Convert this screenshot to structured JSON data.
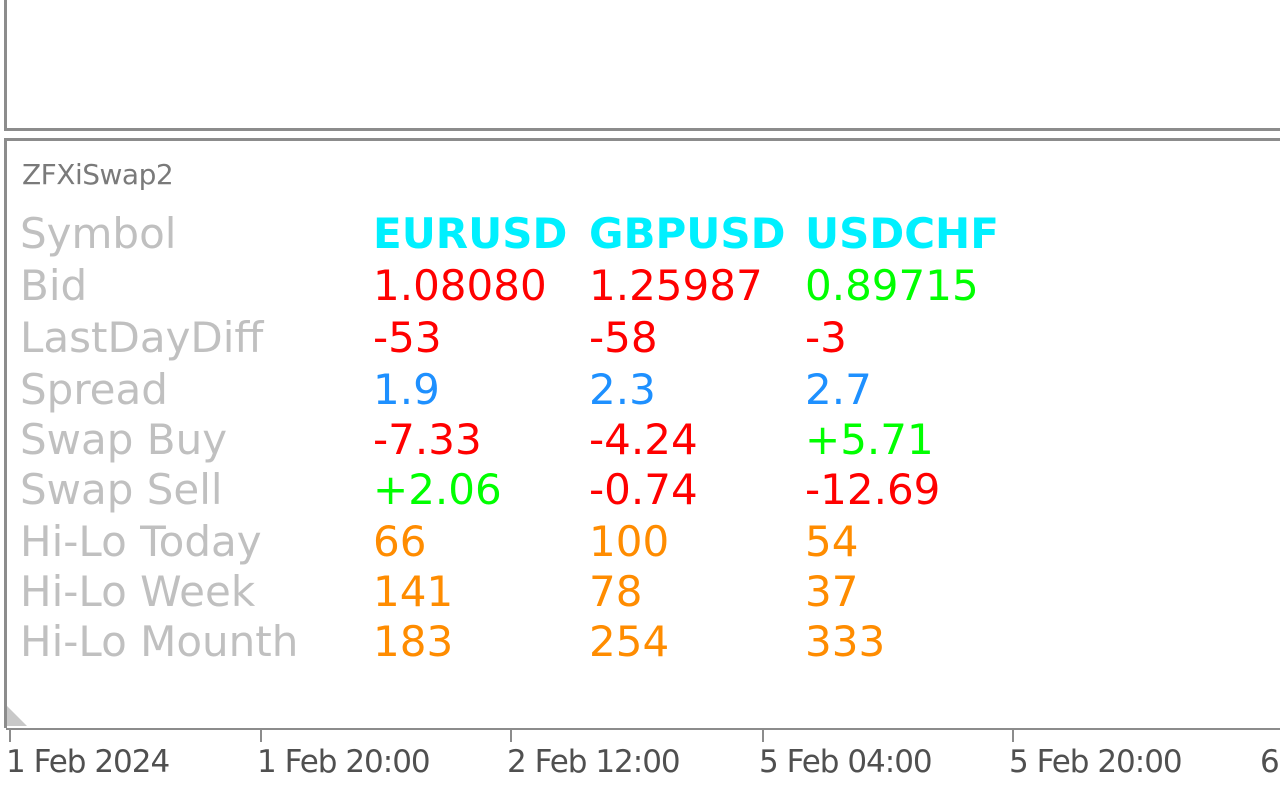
{
  "indicator": {
    "name": "ZFXiSwap2"
  },
  "colors": {
    "label": "#c0c0c0",
    "symbol": "#00f0ff",
    "negative": "#ff0000",
    "positive": "#00ff00",
    "spread": "#1e90ff",
    "range": "#ff8c00"
  },
  "table": {
    "header": {
      "label": "Symbol",
      "values": [
        "EURUSD",
        "GBPUSD",
        "USDCHF"
      ]
    },
    "rows": [
      {
        "label": "Bid",
        "values": [
          "1.08080",
          "1.25987",
          "0.89715"
        ]
      },
      {
        "label": "LastDayDiff",
        "values": [
          "-53",
          "-58",
          "-3"
        ]
      },
      {
        "label": "Spread",
        "values": [
          "1.9",
          "2.3",
          "2.7"
        ]
      },
      {
        "label": "Swap Buy",
        "values": [
          "-7.33",
          "-4.24",
          "+5.71"
        ]
      },
      {
        "label": "Swap Sell",
        "values": [
          "+2.06",
          "-0.74",
          "-12.69"
        ]
      },
      {
        "label": "Hi-Lo Today",
        "values": [
          "66",
          "100",
          "54"
        ]
      },
      {
        "label": "Hi-Lo Week",
        "values": [
          "141",
          "78",
          "37"
        ]
      },
      {
        "label": "Hi-Lo Mounth",
        "values": [
          "183",
          "254",
          "333"
        ]
      }
    ]
  },
  "time_axis": {
    "labels": [
      "1 Feb 2024",
      "1 Feb 20:00",
      "2 Feb 12:00",
      "5 Feb 04:00",
      "5 Feb 20:00",
      "6"
    ]
  }
}
